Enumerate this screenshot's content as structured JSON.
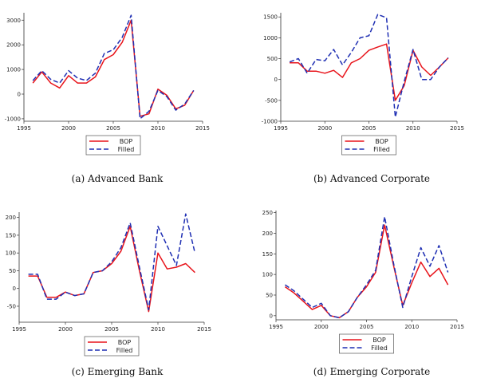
{
  "chart_data": [
    {
      "type": "line",
      "caption": "(a) Advanced Bank",
      "x": [
        1996,
        1997,
        1998,
        1999,
        2000,
        2001,
        2002,
        2003,
        2004,
        2005,
        2006,
        2007,
        2008,
        2009,
        2010,
        2011,
        2012,
        2013,
        2014
      ],
      "series": [
        {
          "name": "BOP",
          "color": "#e8141b",
          "dash": "solid",
          "values": [
            450,
            900,
            450,
            250,
            750,
            450,
            450,
            700,
            1400,
            1600,
            2100,
            3000,
            -900,
            -800,
            200,
            -50,
            -600,
            -450,
            150
          ]
        },
        {
          "name": "Filled",
          "color": "#1f2fb3",
          "dash": "dashed",
          "values": [
            550,
            950,
            600,
            450,
            950,
            650,
            550,
            850,
            1650,
            1800,
            2300,
            3200,
            -1000,
            -700,
            150,
            -100,
            -650,
            -400,
            150
          ]
        }
      ],
      "xlim": [
        1995,
        2015
      ],
      "ylim": [
        -1100,
        3300
      ],
      "xticks": [
        1995,
        2000,
        2005,
        2010,
        2015
      ],
      "yticks": [
        -1000,
        0,
        1000,
        2000,
        3000
      ],
      "legend": "bottom-center"
    },
    {
      "type": "line",
      "caption": "(b) Advanced Corporate",
      "x": [
        1996,
        1997,
        1998,
        1999,
        2000,
        2001,
        2002,
        2003,
        2004,
        2005,
        2006,
        2007,
        2008,
        2009,
        2010,
        2011,
        2012,
        2013,
        2014
      ],
      "series": [
        {
          "name": "BOP",
          "color": "#e8141b",
          "dash": "solid",
          "values": [
            400,
            400,
            200,
            200,
            150,
            220,
            50,
            400,
            500,
            700,
            780,
            850,
            -500,
            -150,
            700,
            300,
            100,
            300,
            520
          ]
        },
        {
          "name": "Filled",
          "color": "#1f2fb3",
          "dash": "dashed",
          "values": [
            420,
            500,
            150,
            480,
            450,
            720,
            350,
            650,
            1000,
            1050,
            1560,
            1480,
            -900,
            -50,
            720,
            0,
            0,
            300,
            520
          ]
        }
      ],
      "xlim": [
        1995,
        2015
      ],
      "ylim": [
        -1000,
        1600
      ],
      "xticks": [
        1995,
        2000,
        2005,
        2010,
        2015
      ],
      "yticks": [
        -1000,
        -500,
        0,
        500,
        1000,
        1500
      ],
      "legend": "bottom-center"
    },
    {
      "type": "line",
      "caption": "(c) Emerging Bank",
      "x": [
        1996,
        1997,
        1998,
        1999,
        2000,
        2001,
        2002,
        2003,
        2004,
        2005,
        2006,
        2007,
        2008,
        2009,
        2010,
        2011,
        2012,
        2013,
        2014
      ],
      "series": [
        {
          "name": "BOP",
          "color": "#e8141b",
          "dash": "solid",
          "values": [
            35,
            35,
            -25,
            -25,
            -10,
            -20,
            -15,
            45,
            50,
            70,
            105,
            175,
            50,
            -65,
            100,
            55,
            60,
            70,
            45
          ]
        },
        {
          "name": "Filled",
          "color": "#1f2fb3",
          "dash": "dashed",
          "values": [
            40,
            40,
            -30,
            -30,
            -10,
            -20,
            -15,
            45,
            50,
            75,
            115,
            185,
            60,
            -60,
            175,
            120,
            65,
            210,
            100
          ]
        }
      ],
      "xlim": [
        1995,
        2015
      ],
      "ylim": [
        -95,
        215
      ],
      "xticks": [
        1995,
        2000,
        2005,
        2010,
        2015
      ],
      "yticks": [
        -50,
        0,
        50,
        100,
        150,
        200
      ],
      "legend": "bottom-center"
    },
    {
      "type": "line",
      "caption": "(d) Emerging Corporate",
      "x": [
        1996,
        1997,
        1998,
        1999,
        2000,
        2001,
        2002,
        2003,
        2004,
        2005,
        2006,
        2007,
        2008,
        2009,
        2010,
        2011,
        2012,
        2013,
        2014
      ],
      "series": [
        {
          "name": "BOP",
          "color": "#e8141b",
          "dash": "solid",
          "values": [
            70,
            55,
            35,
            15,
            25,
            0,
            -5,
            10,
            45,
            70,
            105,
            220,
            120,
            25,
            80,
            130,
            95,
            115,
            75
          ]
        },
        {
          "name": "Filled",
          "color": "#1f2fb3",
          "dash": "dashed",
          "values": [
            75,
            60,
            40,
            20,
            30,
            0,
            -5,
            10,
            45,
            75,
            110,
            240,
            125,
            20,
            95,
            165,
            120,
            170,
            105
          ]
        }
      ],
      "xlim": [
        1995,
        2015
      ],
      "ylim": [
        -10,
        255
      ],
      "xticks": [
        1995,
        2000,
        2005,
        2010,
        2015
      ],
      "yticks": [
        0,
        50,
        100,
        150,
        200,
        250
      ],
      "legend": "bottom-center"
    }
  ]
}
